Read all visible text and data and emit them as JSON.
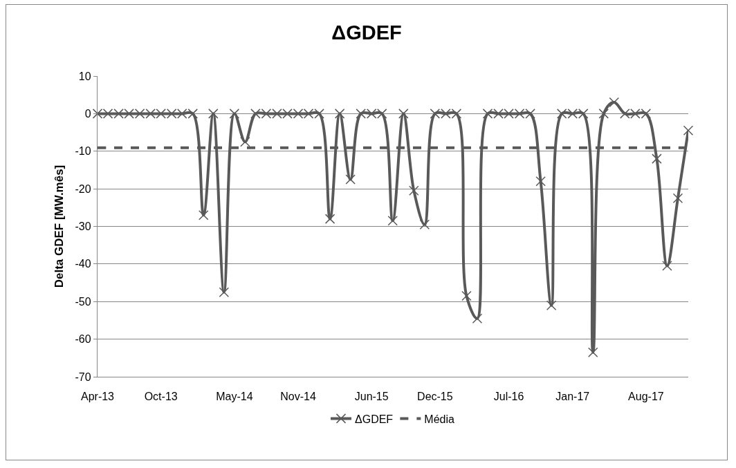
{
  "chart_data": {
    "type": "line",
    "title": "ΔGDEF",
    "ylabel": "Delta GDEF [MW.mês]",
    "x": [
      "2013-04",
      "2013-05",
      "2013-06",
      "2013-07",
      "2013-08",
      "2013-09",
      "2013-10",
      "2013-11",
      "2013-12",
      "2014-01",
      "2014-02",
      "2014-03",
      "2014-04",
      "2014-05",
      "2014-06",
      "2014-07",
      "2014-08",
      "2014-09",
      "2014-10",
      "2014-11",
      "2014-12",
      "2015-01",
      "2015-02",
      "2015-03",
      "2015-04",
      "2015-05",
      "2015-06",
      "2015-07",
      "2015-08",
      "2015-09",
      "2015-10",
      "2015-11",
      "2015-12",
      "2016-01",
      "2016-02",
      "2016-03",
      "2016-04",
      "2016-05",
      "2016-06",
      "2016-07",
      "2016-08",
      "2016-09",
      "2016-10",
      "2016-11",
      "2016-12",
      "2017-01",
      "2017-02",
      "2017-03",
      "2017-04",
      "2017-05",
      "2017-06",
      "2017-07",
      "2017-08",
      "2017-09",
      "2017-10",
      "2017-11",
      "2017-12"
    ],
    "xlim": [
      "2013-04",
      "2017-12"
    ],
    "xticks": [
      {
        "value": "2013-04-01",
        "label": "Apr-13"
      },
      {
        "value": "2013-10-01",
        "label": "Oct-13"
      },
      {
        "value": "2014-05-01",
        "label": "May-14"
      },
      {
        "value": "2014-11-01",
        "label": "Nov-14"
      },
      {
        "value": "2015-06-01",
        "label": "Jun-15"
      },
      {
        "value": "2015-12-01",
        "label": "Dec-15"
      },
      {
        "value": "2016-07-01",
        "label": "Jul-16"
      },
      {
        "value": "2017-01-01",
        "label": "Jan-17"
      },
      {
        "value": "2017-08-01",
        "label": "Aug-17"
      }
    ],
    "ylim": [
      -70,
      10
    ],
    "yticks": [
      -70,
      -60,
      -50,
      -40,
      -30,
      -20,
      -10,
      0,
      10
    ],
    "grid": "y",
    "legend": "bottom",
    "series": [
      {
        "name": "ΔGDEF",
        "color": "#595959",
        "marker": "cross",
        "line_style": "solid",
        "values": [
          0,
          0,
          0,
          0,
          0,
          0,
          0,
          0,
          0,
          0,
          -27,
          0,
          -47.5,
          0,
          -7.5,
          0,
          0,
          0,
          0,
          0,
          0,
          0,
          -28,
          0,
          -17.5,
          0,
          0,
          0,
          -28.5,
          0,
          -20.5,
          -29.5,
          0,
          0,
          0,
          -48.5,
          -54.5,
          0,
          0,
          0,
          0,
          0,
          -18,
          -51,
          0,
          0,
          0,
          -63.5,
          0,
          3,
          0,
          0,
          0,
          -12,
          -40.5,
          -22.5,
          -4.5
        ]
      },
      {
        "name": "Média",
        "color": "#595959",
        "marker": "none",
        "line_style": "dashed",
        "values": [
          -9.1,
          -9.1,
          -9.1,
          -9.1,
          -9.1,
          -9.1,
          -9.1,
          -9.1,
          -9.1,
          -9.1,
          -9.1,
          -9.1,
          -9.1,
          -9.1,
          -9.1,
          -9.1,
          -9.1,
          -9.1,
          -9.1,
          -9.1,
          -9.1,
          -9.1,
          -9.1,
          -9.1,
          -9.1,
          -9.1,
          -9.1,
          -9.1,
          -9.1,
          -9.1,
          -9.1,
          -9.1,
          -9.1,
          -9.1,
          -9.1,
          -9.1,
          -9.1,
          -9.1,
          -9.1,
          -9.1,
          -9.1,
          -9.1,
          -9.1,
          -9.1,
          -9.1,
          -9.1,
          -9.1,
          -9.1,
          -9.1,
          -9.1,
          -9.1,
          -9.1,
          -9.1,
          -9.1,
          -9.1,
          -9.1,
          -9.1
        ]
      }
    ]
  }
}
